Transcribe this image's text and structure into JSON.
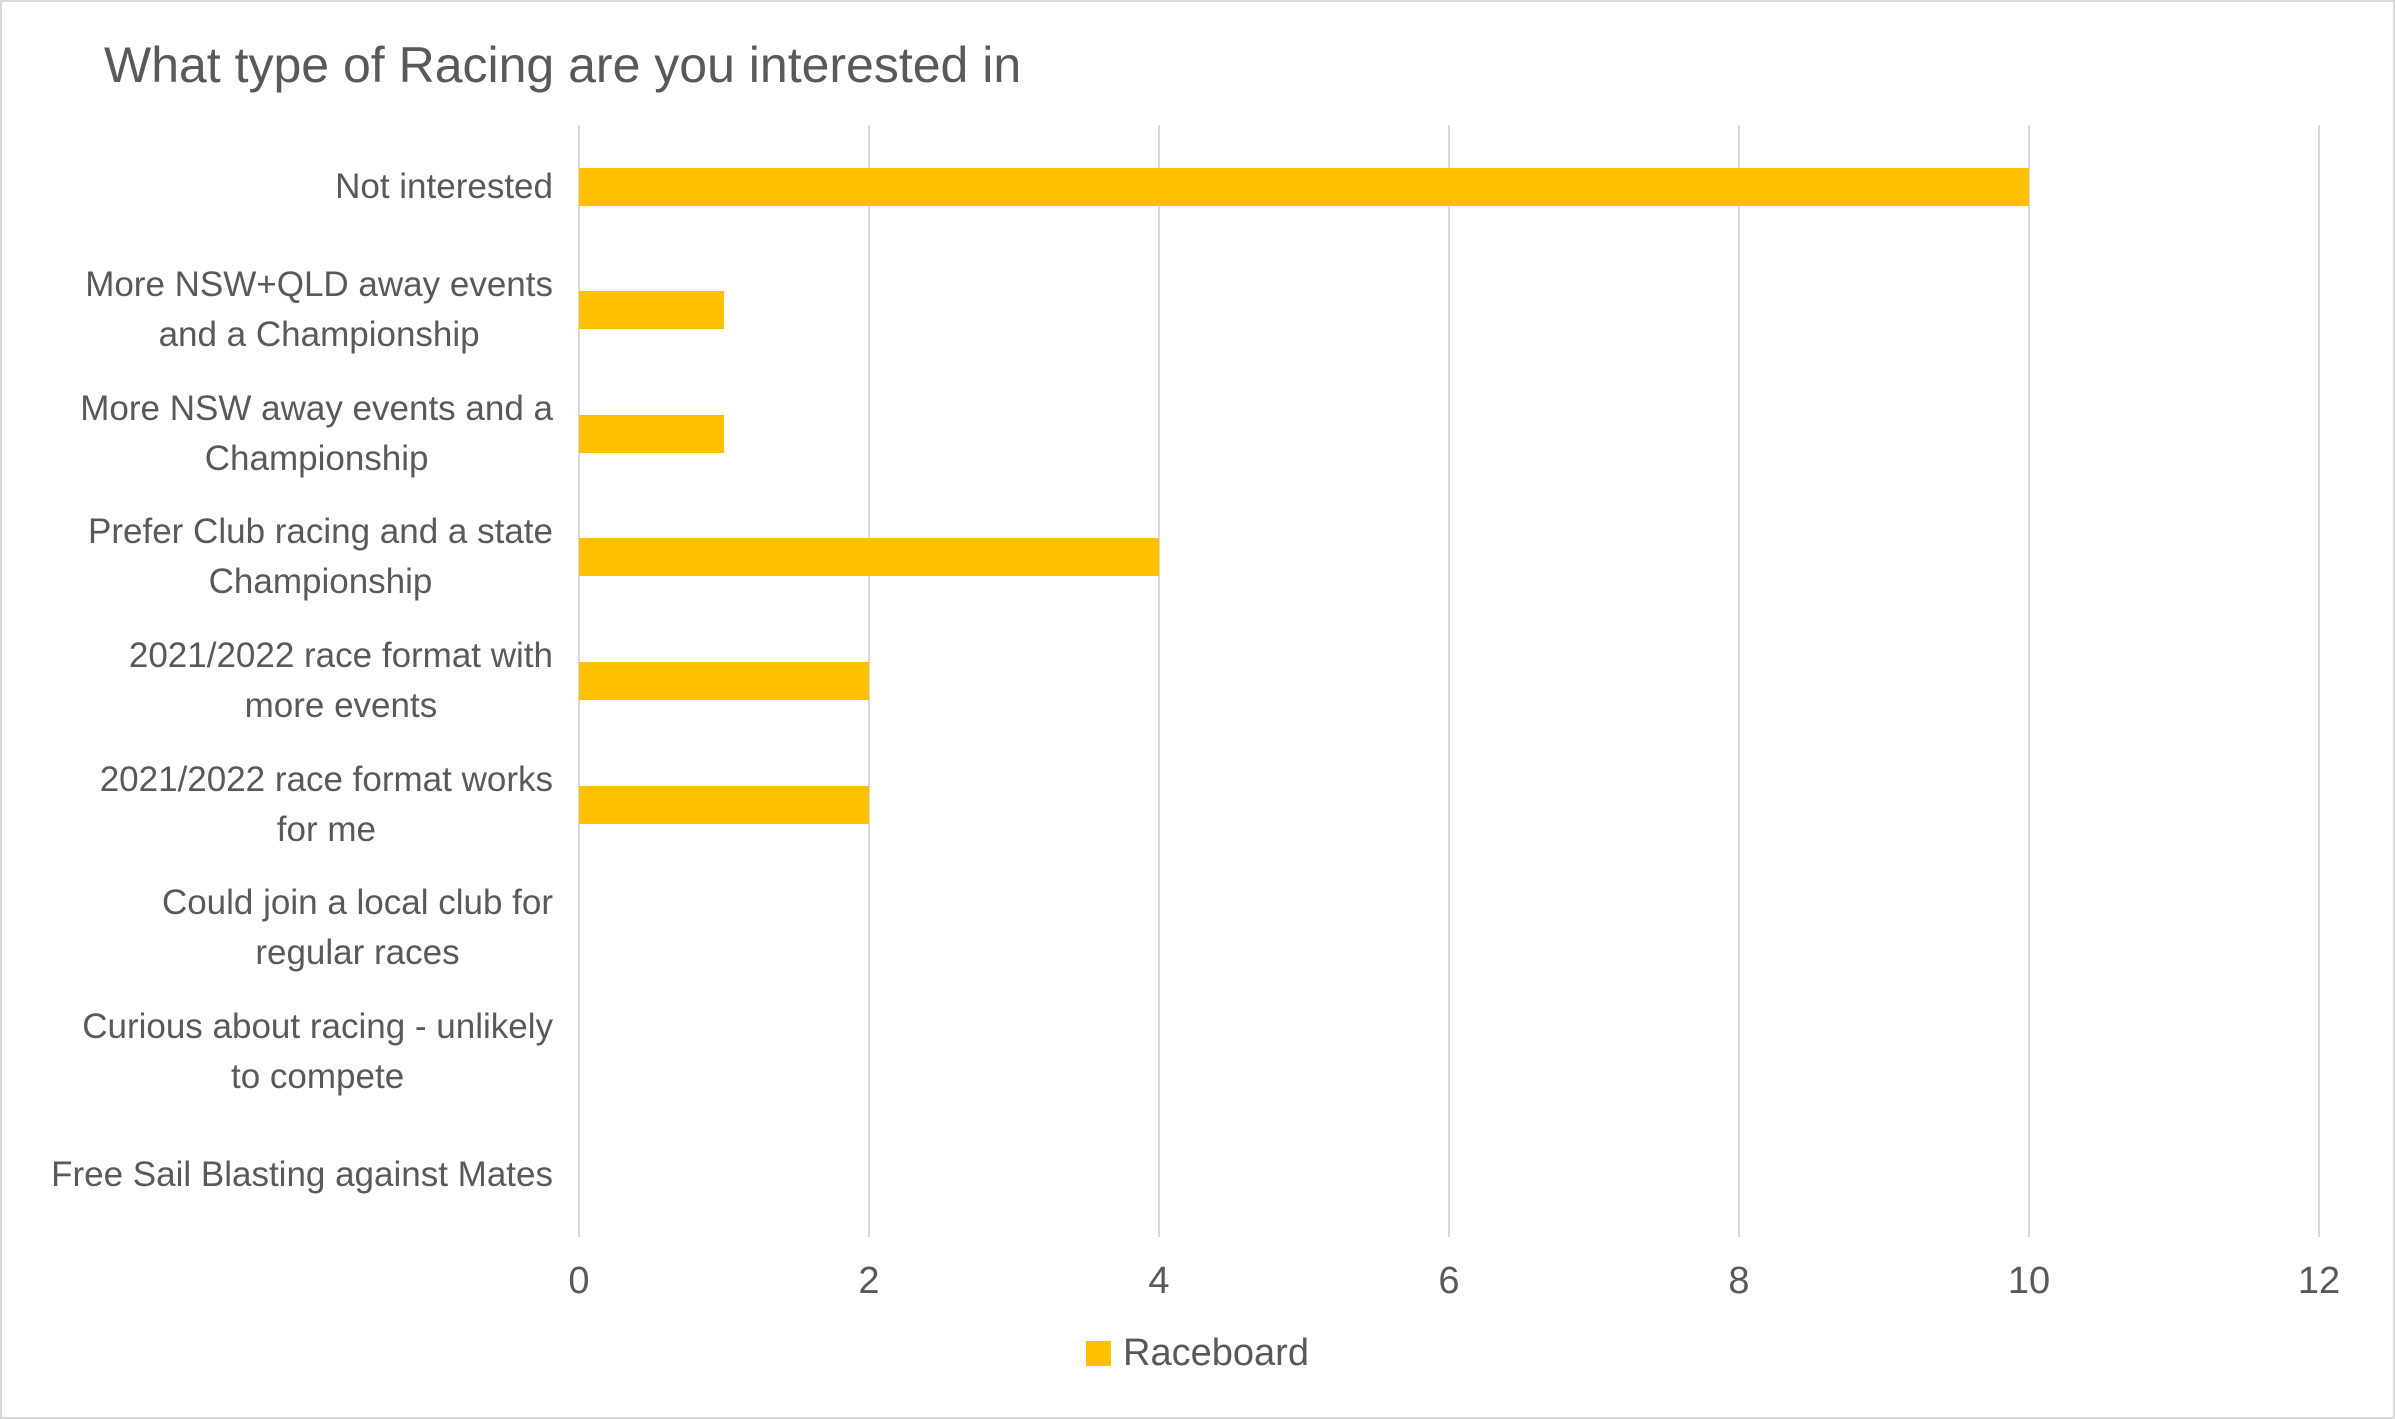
{
  "chart_data": {
    "type": "bar",
    "orientation": "horizontal",
    "title": "What type of Racing are you interested in",
    "categories": [
      "Not interested",
      "More NSW+QLD away events and a Championship",
      "More NSW away events and a Championship",
      "Prefer Club racing and a state Championship",
      "2021/2022 race format with more events",
      "2021/2022 race format works for me",
      "Could join a local club for regular races",
      "Curious about racing - unlikely to compete",
      "Free Sail Blasting against Mates"
    ],
    "category_lines": [
      [
        "Not interested"
      ],
      [
        "More NSW+QLD away events",
        "and a Championship"
      ],
      [
        "More NSW away events and a",
        "Championship"
      ],
      [
        "Prefer Club racing and a state",
        "Championship"
      ],
      [
        "2021/2022 race format with",
        "more events"
      ],
      [
        "2021/2022 race format works",
        "for me"
      ],
      [
        "Could join a local club for",
        "regular races"
      ],
      [
        "Curious about racing - unlikely",
        "to compete"
      ],
      [
        "Free Sail Blasting against Mates"
      ]
    ],
    "series": [
      {
        "name": "Raceboard",
        "color": "#FFC000",
        "values": [
          10,
          1,
          1,
          4,
          2,
          2,
          0,
          0,
          0
        ]
      }
    ],
    "x_ticks": [
      0,
      2,
      4,
      6,
      8,
      10,
      12
    ],
    "xlim": [
      0,
      12
    ],
    "grid": "vertical",
    "legend_position": "bottom",
    "colors": {
      "bar": "#FFC000",
      "text": "#595959",
      "gridline": "#D9D9D9",
      "border": "#D9D9D9",
      "background": "#FFFFFF"
    }
  }
}
